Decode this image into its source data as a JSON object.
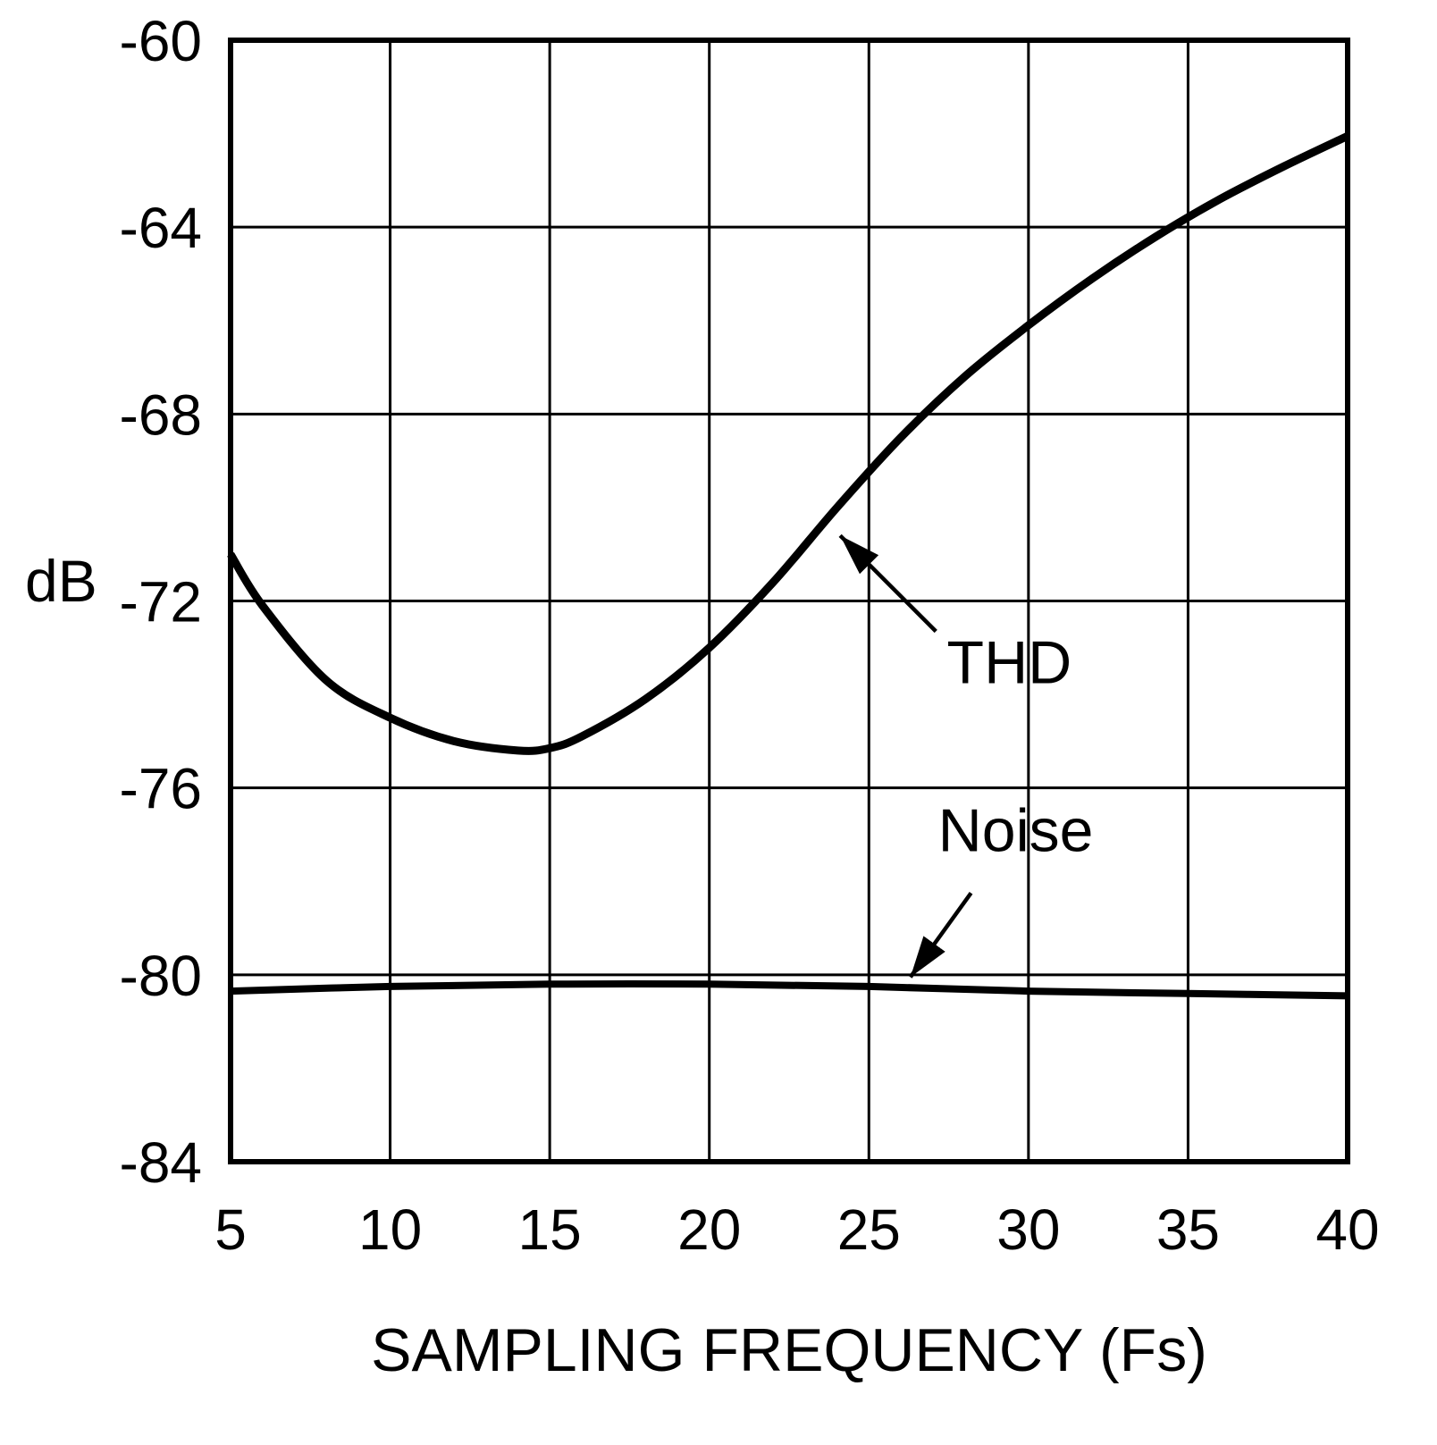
{
  "page": {
    "background": "#ffffff",
    "ink": "#000000"
  },
  "chart_data": {
    "type": "line",
    "title": "",
    "xlabel": "SAMPLING FREQUENCY (Fs)",
    "ylabel": "dB",
    "xlim": [
      5,
      40
    ],
    "ylim": [
      -84,
      -60
    ],
    "xticks": [
      5,
      10,
      15,
      20,
      25,
      30,
      35,
      40
    ],
    "yticks": [
      -60,
      -64,
      -68,
      -72,
      -76,
      -80,
      -84
    ],
    "grid": true,
    "legend_position": "none",
    "line_color": "#000000",
    "series": [
      {
        "name": "THD",
        "stroke_width": 9,
        "x": [
          5,
          6,
          8,
          10,
          12,
          14,
          15,
          16,
          18,
          20,
          22,
          24,
          26,
          28,
          30,
          32,
          34,
          36,
          38,
          40
        ],
        "y": [
          -71.0,
          -72.1,
          -73.7,
          -74.5,
          -75.0,
          -75.2,
          -75.15,
          -74.9,
          -74.1,
          -73.0,
          -71.6,
          -70.0,
          -68.5,
          -67.2,
          -66.1,
          -65.1,
          -64.2,
          -63.4,
          -62.7,
          -62.05
        ]
      },
      {
        "name": "Noise",
        "stroke_width": 8,
        "x": [
          5,
          10,
          15,
          20,
          25,
          30,
          35,
          40
        ],
        "y": [
          -80.35,
          -80.25,
          -80.2,
          -80.2,
          -80.25,
          -80.35,
          -80.4,
          -80.45
        ]
      }
    ],
    "annotations": [
      {
        "text": "THD",
        "label_x": 29.4,
        "label_y": -73.3,
        "arrow_from_x": 27.1,
        "arrow_from_y": -72.65,
        "arrow_to_x": 24.1,
        "arrow_to_y": -70.6
      },
      {
        "text": "Noise",
        "label_x": 29.6,
        "label_y": -76.9,
        "arrow_from_x": 28.2,
        "arrow_from_y": -78.25,
        "arrow_to_x": 26.3,
        "arrow_to_y": -80.05
      }
    ]
  }
}
